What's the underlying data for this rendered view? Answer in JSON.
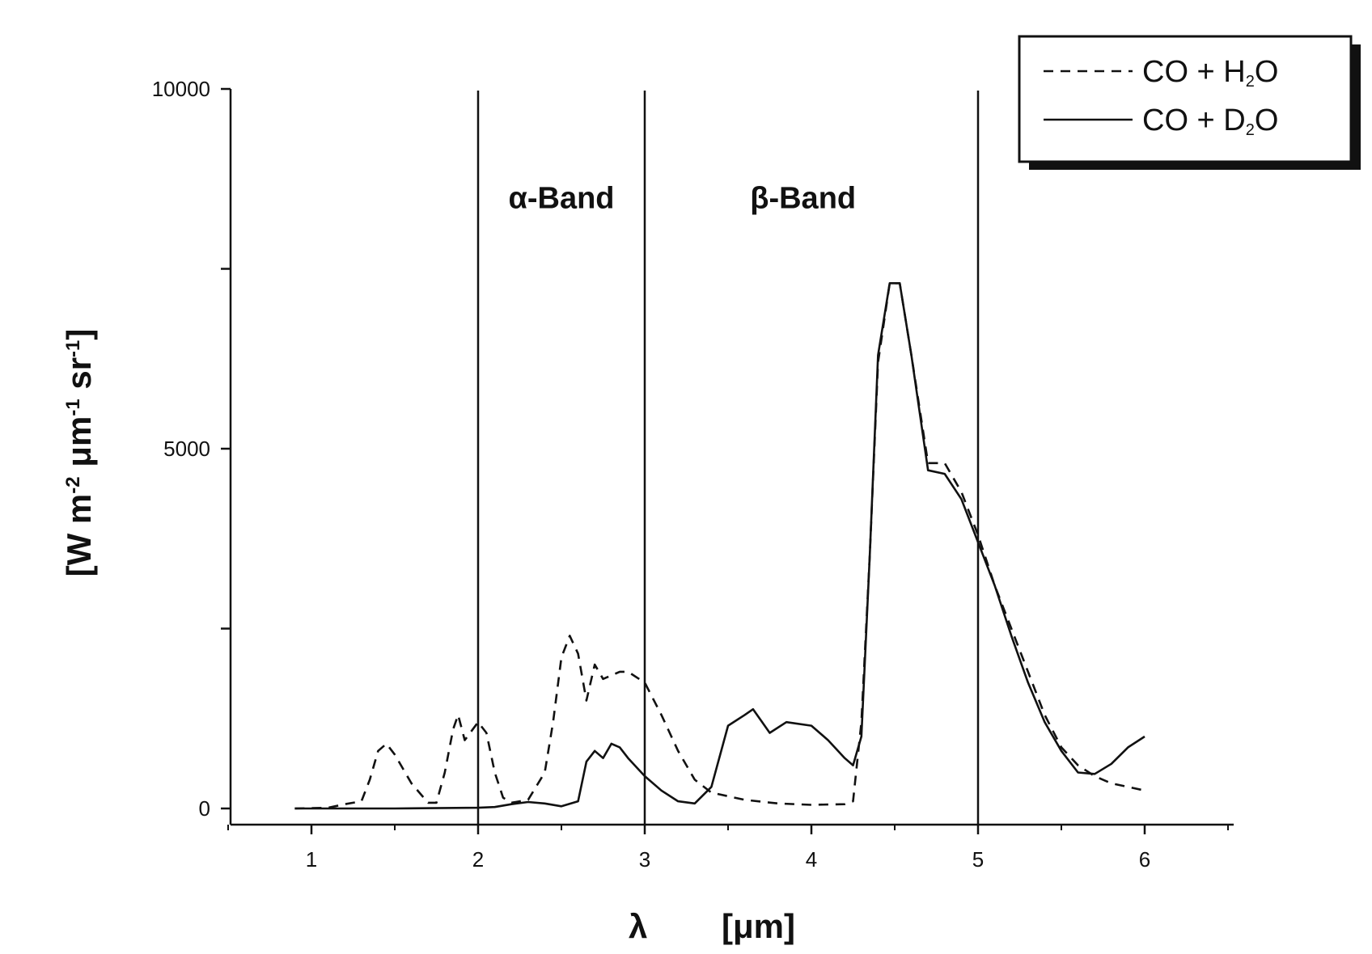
{
  "chart_data": {
    "type": "line",
    "title": "",
    "xlabel": "λ",
    "xunit": "[μm]",
    "ylabel": "[W m-2 μm-1 sr-1]",
    "ylabel_parts": [
      "[W m",
      "-2",
      " μm",
      "-1",
      " sr",
      "-1",
      "]"
    ],
    "xlim": [
      0.5,
      6.5
    ],
    "ylim": [
      -250,
      10000
    ],
    "x_ticks": [
      1,
      2,
      3,
      4,
      5,
      6
    ],
    "y_ticks": [
      0,
      2500,
      5000,
      7500,
      10000
    ],
    "y_tick_labels": [
      "0",
      "",
      "5000",
      "",
      "10000"
    ],
    "grid": false,
    "legend_position": "top-right",
    "vertical_lines": [
      2,
      3,
      5
    ],
    "annotations": [
      {
        "text": "α-Band",
        "x": 2.5,
        "y": 8500
      },
      {
        "text": "β-Band",
        "x": 3.95,
        "y": 8500
      }
    ],
    "series": [
      {
        "name_parts": [
          "CO + H",
          "2",
          "O"
        ],
        "style": "dashed",
        "color": "#111111",
        "points": [
          [
            0.9,
            0
          ],
          [
            1.1,
            10
          ],
          [
            1.2,
            60
          ],
          [
            1.3,
            100
          ],
          [
            1.35,
            400
          ],
          [
            1.4,
            800
          ],
          [
            1.45,
            900
          ],
          [
            1.5,
            750
          ],
          [
            1.6,
            350
          ],
          [
            1.7,
            80
          ],
          [
            1.75,
            80
          ],
          [
            1.8,
            500
          ],
          [
            1.85,
            1100
          ],
          [
            1.88,
            1300
          ],
          [
            1.92,
            950
          ],
          [
            2.0,
            1200
          ],
          [
            2.05,
            1050
          ],
          [
            2.1,
            500
          ],
          [
            2.15,
            150
          ],
          [
            2.2,
            80
          ],
          [
            2.3,
            120
          ],
          [
            2.4,
            500
          ],
          [
            2.45,
            1200
          ],
          [
            2.5,
            2100
          ],
          [
            2.55,
            2400
          ],
          [
            2.6,
            2150
          ],
          [
            2.65,
            1500
          ],
          [
            2.7,
            2000
          ],
          [
            2.75,
            1800
          ],
          [
            2.8,
            1850
          ],
          [
            2.85,
            1900
          ],
          [
            2.9,
            1900
          ],
          [
            3.0,
            1750
          ],
          [
            3.1,
            1300
          ],
          [
            3.2,
            800
          ],
          [
            3.3,
            400
          ],
          [
            3.4,
            220
          ],
          [
            3.6,
            120
          ],
          [
            3.8,
            70
          ],
          [
            4.0,
            50
          ],
          [
            4.2,
            60
          ],
          [
            4.25,
            100
          ],
          [
            4.3,
            1200
          ],
          [
            4.35,
            3500
          ],
          [
            4.4,
            6200
          ],
          [
            4.47,
            7300
          ],
          [
            4.53,
            7300
          ],
          [
            4.6,
            6300
          ],
          [
            4.7,
            4800
          ],
          [
            4.8,
            4800
          ],
          [
            4.9,
            4400
          ],
          [
            5.0,
            3800
          ],
          [
            5.1,
            3100
          ],
          [
            5.2,
            2500
          ],
          [
            5.3,
            1900
          ],
          [
            5.4,
            1300
          ],
          [
            5.5,
            850
          ],
          [
            5.6,
            600
          ],
          [
            5.7,
            450
          ],
          [
            5.8,
            350
          ],
          [
            5.9,
            300
          ],
          [
            6.0,
            250
          ]
        ]
      },
      {
        "name_parts": [
          "CO + D",
          "2",
          "O"
        ],
        "style": "solid",
        "color": "#111111",
        "points": [
          [
            0.9,
            0
          ],
          [
            1.5,
            0
          ],
          [
            2.0,
            10
          ],
          [
            2.1,
            20
          ],
          [
            2.2,
            60
          ],
          [
            2.3,
            90
          ],
          [
            2.4,
            70
          ],
          [
            2.5,
            30
          ],
          [
            2.6,
            100
          ],
          [
            2.65,
            650
          ],
          [
            2.7,
            800
          ],
          [
            2.75,
            700
          ],
          [
            2.8,
            900
          ],
          [
            2.85,
            850
          ],
          [
            2.9,
            700
          ],
          [
            3.0,
            450
          ],
          [
            3.1,
            250
          ],
          [
            3.2,
            100
          ],
          [
            3.3,
            70
          ],
          [
            3.4,
            300
          ],
          [
            3.5,
            1150
          ],
          [
            3.6,
            1300
          ],
          [
            3.65,
            1380
          ],
          [
            3.75,
            1050
          ],
          [
            3.85,
            1200
          ],
          [
            4.0,
            1150
          ],
          [
            4.1,
            950
          ],
          [
            4.2,
            700
          ],
          [
            4.25,
            600
          ],
          [
            4.3,
            1000
          ],
          [
            4.35,
            3500
          ],
          [
            4.4,
            6300
          ],
          [
            4.47,
            7300
          ],
          [
            4.53,
            7300
          ],
          [
            4.6,
            6300
          ],
          [
            4.7,
            4700
          ],
          [
            4.8,
            4650
          ],
          [
            4.9,
            4300
          ],
          [
            5.0,
            3700
          ],
          [
            5.1,
            3100
          ],
          [
            5.2,
            2400
          ],
          [
            5.3,
            1750
          ],
          [
            5.4,
            1200
          ],
          [
            5.5,
            800
          ],
          [
            5.6,
            500
          ],
          [
            5.7,
            480
          ],
          [
            5.8,
            620
          ],
          [
            5.9,
            850
          ],
          [
            6.0,
            1000
          ]
        ]
      }
    ]
  }
}
